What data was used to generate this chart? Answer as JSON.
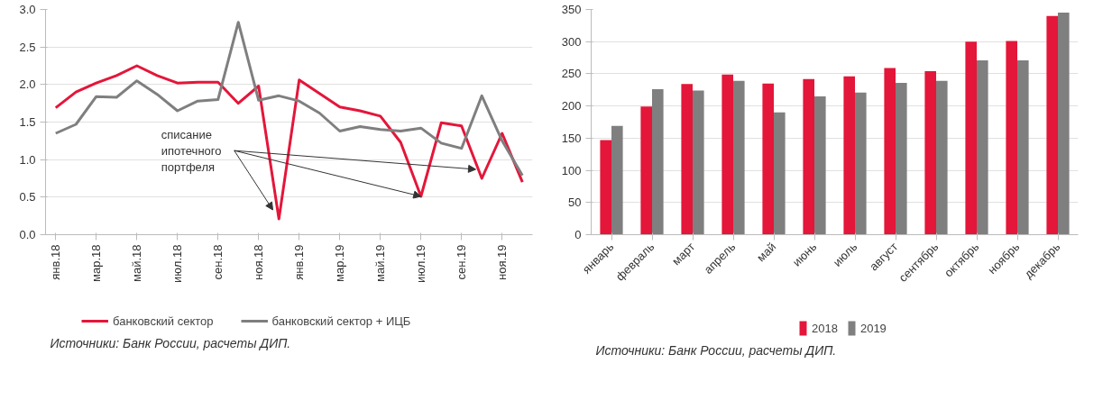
{
  "chart_data": [
    {
      "type": "line",
      "categories": [
        "янв.18",
        null,
        "мар.18",
        null,
        "май.18",
        null,
        "июл.18",
        null,
        "сен.18",
        null,
        "ноя.18",
        null,
        "янв.19",
        null,
        "мар.19",
        null,
        "май.19",
        null,
        "июл.19",
        null,
        "сен.19",
        null,
        "ноя.19",
        null
      ],
      "series": [
        {
          "name": "банковский сектор",
          "color": "#e4163a",
          "values": [
            1.69,
            1.9,
            2.02,
            2.12,
            2.25,
            2.12,
            2.02,
            2.03,
            2.03,
            1.75,
            1.98,
            0.21,
            2.06,
            1.88,
            1.7,
            1.65,
            1.58,
            1.23,
            0.51,
            1.49,
            1.45,
            0.75,
            1.35,
            0.7
          ]
        },
        {
          "name": "банковский сектор + ИЦБ",
          "color": "#7f7f7f",
          "values": [
            1.35,
            1.47,
            1.84,
            1.83,
            2.05,
            1.87,
            1.65,
            1.78,
            1.8,
            2.83,
            1.79,
            1.85,
            1.78,
            1.62,
            1.38,
            1.44,
            1.4,
            1.38,
            1.42,
            1.22,
            1.15,
            1.85,
            1.25,
            0.79
          ]
        }
      ],
      "ylim": [
        0,
        3.0
      ],
      "yticks": [
        {
          "value": 0,
          "label": "0.0"
        },
        0.5,
        {
          "value": 1,
          "label": "1.0"
        },
        1.5,
        {
          "value": 2,
          "label": "2.0"
        },
        2.5,
        {
          "value": 3,
          "label": "3.0"
        }
      ],
      "grid": "y",
      "legend": "bottom",
      "marker": "none",
      "line_style": "solid",
      "annotations": [
        {
          "text": "списание\nипотечного\nпортфеля",
          "x": "июл.19",
          "y": 0.51
        },
        "Источники: Банк России, расчеты ДИП."
      ]
    },
    {
      "type": "bar",
      "categories": [
        "январь",
        "февраль",
        "март",
        "апрель",
        "май",
        "июнь",
        "июль",
        "август",
        "сентябрь",
        "октябрь",
        "ноябрь",
        "декабрь"
      ],
      "series": [
        {
          "name": "2018",
          "color": "#e4163a",
          "values": [
            147,
            199,
            234,
            249,
            235,
            242,
            246,
            259,
            254,
            300,
            301,
            340
          ]
        },
        {
          "name": "2019",
          "color": "#7f7f7f",
          "values": [
            169,
            226,
            224,
            239,
            190,
            215,
            221,
            236,
            239,
            271,
            271,
            345
          ]
        }
      ],
      "ylim": [
        0,
        350
      ],
      "yticks": [
        0,
        50,
        100,
        150,
        200,
        250,
        300,
        350
      ],
      "grid": "y",
      "legend": "bottom",
      "annotations": [
        "Источники: Банк России, расчеты ДИП."
      ]
    }
  ]
}
